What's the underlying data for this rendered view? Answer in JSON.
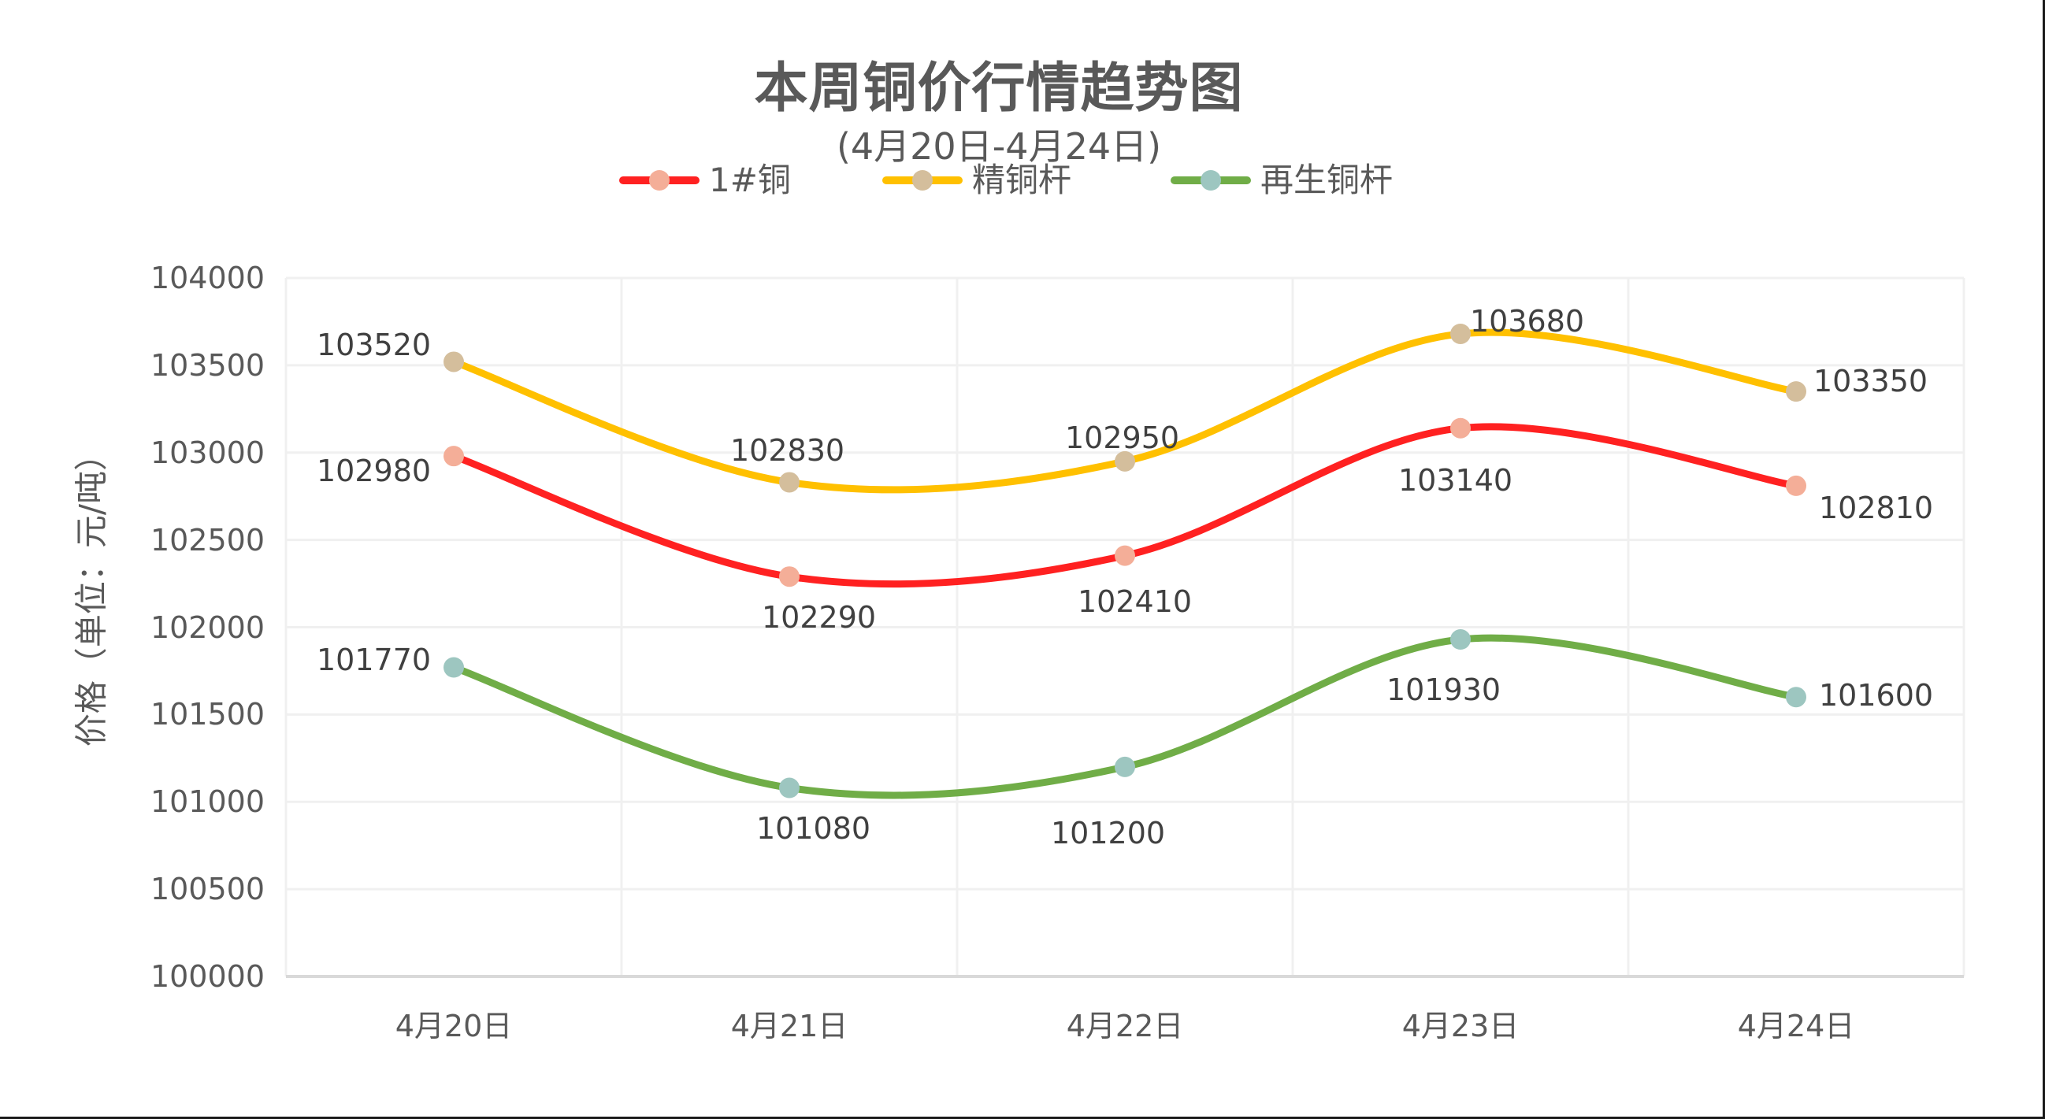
{
  "chart_data": {
    "type": "line",
    "smooth": true,
    "title": "本周铜价行情趋势图",
    "subtitle": "(4月20日-4月24日)",
    "xlabel": "",
    "ylabel": "价格（单位：元/吨）",
    "ylim": [
      100000,
      104000
    ],
    "ytick_step": 500,
    "yticks": [
      "104000",
      "103500",
      "103000",
      "102500",
      "102000",
      "101500",
      "101000",
      "100500",
      "100000"
    ],
    "categories": [
      "4月20日",
      "4月21日",
      "4月22日",
      "4月23日",
      "4月24日"
    ],
    "grid": true,
    "legend_position": "top",
    "series": [
      {
        "name": "1#铜",
        "line_color": "#FF2121",
        "marker_color": "#F4AE98",
        "values": [
          102980,
          102290,
          102410,
          103140,
          102810
        ],
        "labels": [
          "102980",
          "102290",
          "102410",
          "103140",
          "102810"
        ]
      },
      {
        "name": "精铜杆",
        "line_color": "#FFC000",
        "marker_color": "#D4BE9C",
        "values": [
          103520,
          102830,
          102950,
          103680,
          103350
        ],
        "labels": [
          "103520",
          "102830",
          "102950",
          "103680",
          "103350"
        ]
      },
      {
        "name": "再生铜杆",
        "line_color": "#70AD47",
        "marker_color": "#9DC6C0",
        "values": [
          101770,
          101080,
          101200,
          101930,
          101600
        ],
        "labels": [
          "101770",
          "101080",
          "101200",
          "101930",
          "101600"
        ]
      }
    ]
  },
  "colors": {
    "text": "#595959",
    "data_label": "#404040",
    "gridline": "#F0F0F0",
    "axis_line": "#D9D9D9"
  }
}
